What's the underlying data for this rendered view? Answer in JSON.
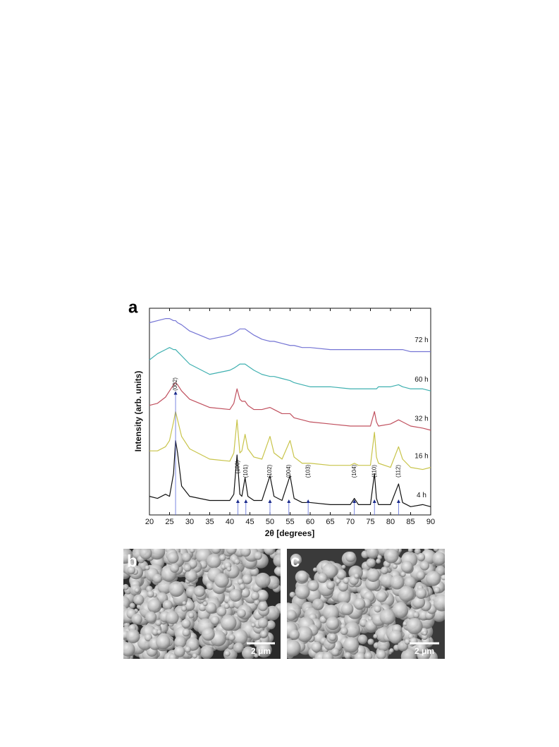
{
  "chart_data": {
    "type": "line",
    "panel_label": "a",
    "xlabel": "2θ [degrees]",
    "ylabel": "Intensity (arb. units)",
    "xlim": [
      20,
      90
    ],
    "xticks": [
      20,
      25,
      30,
      35,
      40,
      45,
      50,
      55,
      60,
      65,
      70,
      75,
      80,
      85,
      90
    ],
    "ylim": [
      0,
      100
    ],
    "x": [
      20,
      22,
      24,
      25,
      26,
      26.5,
      27,
      28,
      30,
      35,
      40,
      41,
      41.8,
      42.5,
      43,
      43.8,
      44.5,
      46,
      48,
      50,
      51,
      53,
      55,
      56,
      58,
      60,
      65,
      70,
      71,
      72,
      75,
      76,
      76.5,
      77,
      80,
      82,
      83,
      85,
      88,
      90
    ],
    "series": [
      {
        "name": "4 h",
        "color": "#111111",
        "values": [
          9,
          8,
          10,
          9,
          20,
          36,
          30,
          14,
          9,
          7,
          7,
          10,
          29,
          10,
          9,
          18,
          9,
          7,
          7,
          19,
          9,
          7,
          19,
          8,
          6,
          6,
          5,
          5,
          8,
          5,
          5,
          20,
          8,
          5,
          5,
          15,
          6,
          4,
          5,
          4
        ]
      },
      {
        "name": "16 h",
        "color": "#c8c44a",
        "values": [
          31,
          31,
          33,
          36,
          45,
          50,
          46,
          38,
          32,
          27,
          26,
          30,
          46,
          30,
          31,
          39,
          32,
          28,
          27,
          38,
          30,
          27,
          36,
          28,
          25,
          25,
          24,
          24,
          25,
          24,
          24,
          40,
          28,
          25,
          23,
          33,
          27,
          23,
          22,
          23
        ]
      },
      {
        "name": "32 h",
        "color": "#c0505e",
        "values": [
          53,
          54,
          57,
          60,
          63,
          64,
          63,
          60,
          56,
          52,
          51,
          54,
          61,
          56,
          55,
          55,
          53,
          51,
          51,
          52,
          51,
          49,
          49,
          47,
          46,
          45,
          44,
          43,
          43,
          43,
          43,
          50,
          45,
          43,
          44,
          46,
          45,
          43,
          42,
          41
        ]
      },
      {
        "name": "60 h",
        "color": "#3fb0b0",
        "values": [
          75,
          78,
          80,
          81,
          80,
          80,
          79,
          77,
          73,
          68,
          70,
          71,
          72,
          73,
          73,
          73,
          72,
          70,
          68,
          67,
          67,
          66,
          65,
          64,
          63,
          62,
          62,
          61,
          61,
          61,
          61,
          61,
          61,
          62,
          62,
          63,
          62,
          61,
          61,
          60
        ]
      },
      {
        "name": "72 h",
        "color": "#7474d4",
        "values": [
          93,
          94,
          95,
          95,
          94,
          94,
          93,
          92,
          89,
          85,
          87,
          88,
          89,
          90,
          90,
          90,
          89,
          87,
          85,
          84,
          84,
          83,
          82,
          82,
          81,
          81,
          80,
          80,
          80,
          80,
          80,
          80,
          80,
          80,
          80,
          80,
          80,
          79,
          79,
          79
        ]
      }
    ],
    "reflections": [
      {
        "label": "(002)",
        "x": 26.5
      },
      {
        "label": "(100)",
        "x": 42
      },
      {
        "label": "(101)",
        "x": 44
      },
      {
        "label": "(102)",
        "x": 50
      },
      {
        "label": "(004)",
        "x": 54.7
      },
      {
        "label": "(103)",
        "x": 59.5
      },
      {
        "label": "(104)",
        "x": 71
      },
      {
        "label": "(110)",
        "x": 76
      },
      {
        "label": "(112)",
        "x": 82
      }
    ]
  },
  "panels": [
    {
      "label": "b",
      "scale_bar": "2 μm"
    },
    {
      "label": "c",
      "scale_bar": "2 μm"
    }
  ]
}
